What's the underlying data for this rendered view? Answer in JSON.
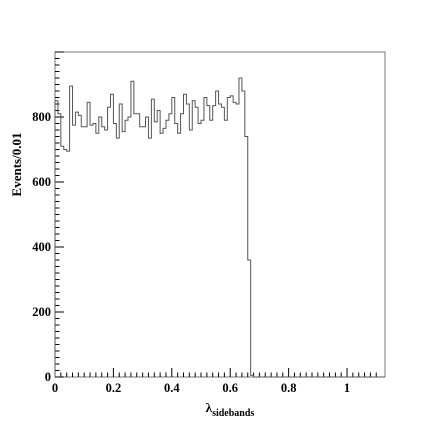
{
  "chart_data": {
    "type": "histogram",
    "xlabel": "λ",
    "xlabel_subscript": "sidebands",
    "ylabel": "Events/0.01",
    "xlim": [
      0,
      1.13
    ],
    "ylim": [
      0,
      1000
    ],
    "grid": false,
    "x_ticks": [
      "0",
      "0.2",
      "0.4",
      "0.6",
      "0.8",
      "1"
    ],
    "y_ticks": [
      "0",
      "200",
      "400",
      "600",
      "800"
    ],
    "bin_width": 0.01,
    "bin_start": 0,
    "values": [
      850,
      810,
      710,
      700,
      695,
      895,
      775,
      815,
      805,
      770,
      770,
      845,
      775,
      780,
      750,
      800,
      770,
      760,
      830,
      870,
      780,
      735,
      840,
      755,
      790,
      800,
      910,
      810,
      810,
      770,
      770,
      800,
      735,
      855,
      785,
      820,
      750,
      765,
      790,
      810,
      860,
      780,
      750,
      810,
      870,
      840,
      760,
      850,
      830,
      780,
      790,
      860,
      835,
      790,
      835,
      880,
      840,
      830,
      790,
      860,
      865,
      845,
      840,
      920,
      880,
      740,
      360,
      5,
      0,
      0,
      0,
      0,
      0,
      0,
      0,
      0,
      0,
      0,
      0,
      0,
      0,
      0,
      0,
      0,
      0,
      0,
      0,
      0,
      0,
      0,
      0,
      0,
      0,
      0,
      0,
      0,
      0,
      0,
      0,
      0,
      0,
      0,
      0,
      0,
      0,
      0,
      0,
      0,
      0,
      0,
      0,
      0,
      0
    ]
  }
}
